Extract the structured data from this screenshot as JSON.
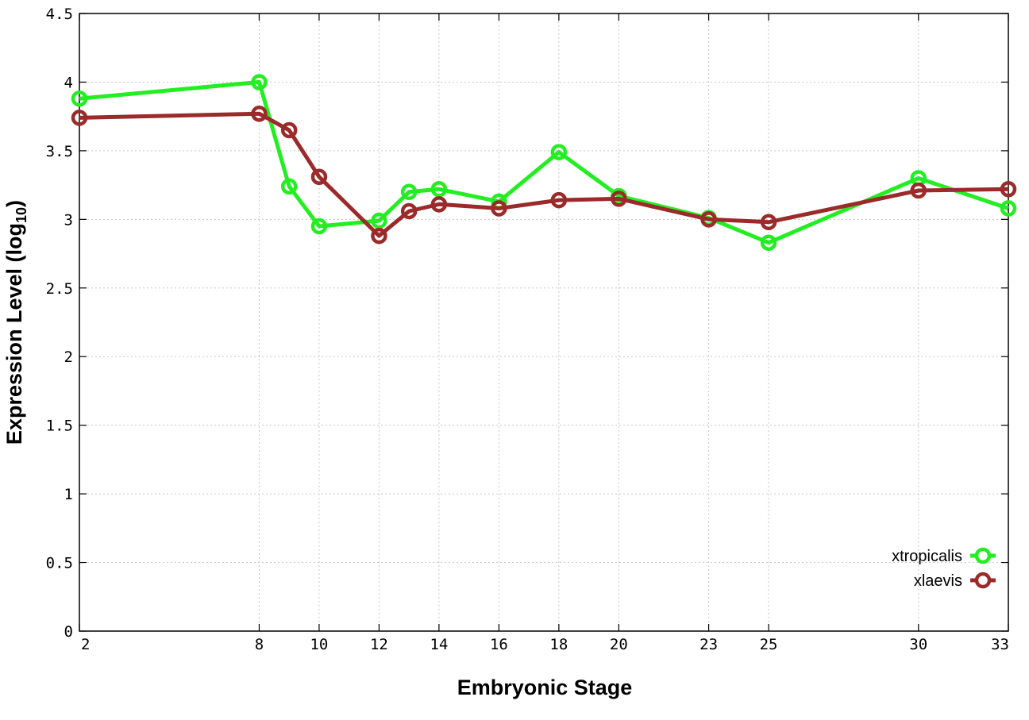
{
  "chart_data": {
    "type": "line",
    "title": "",
    "xlabel": "Embryonic Stage",
    "ylabel_main": "Expression Level (log",
    "ylabel_sub": "10",
    "ylabel_close": ")",
    "xlim": [
      2,
      33
    ],
    "ylim": [
      0,
      4.5
    ],
    "xticks": [
      2,
      8,
      10,
      12,
      14,
      16,
      18,
      20,
      23,
      25,
      30,
      33
    ],
    "xtick_labels": [
      "2",
      "8",
      "10",
      "12",
      "14",
      "16",
      "18",
      "20",
      "23",
      "25",
      "30",
      "33"
    ],
    "yticks": [
      0,
      0.5,
      1,
      1.5,
      2,
      2.5,
      3,
      3.5,
      4,
      4.5
    ],
    "ytick_labels": [
      "0",
      "0.5",
      "1",
      "1.5",
      "2",
      "2.5",
      "3",
      "3.5",
      "4",
      "4.5"
    ],
    "grid": true,
    "legend_position": "bottom-right",
    "series": [
      {
        "name": "xtropicalis",
        "color": "#22ee22",
        "marker": "circle-open",
        "x": [
          2,
          8,
          9,
          10,
          12,
          13,
          14,
          16,
          18,
          20,
          23,
          25,
          30,
          33
        ],
        "y": [
          3.88,
          4.0,
          3.24,
          2.95,
          2.99,
          3.2,
          3.22,
          3.13,
          3.49,
          3.17,
          3.01,
          2.83,
          3.3,
          3.08
        ]
      },
      {
        "name": "xlaevis",
        "color": "#9b2a2a",
        "marker": "circle-open",
        "x": [
          2,
          8,
          9,
          10,
          12,
          13,
          14,
          16,
          18,
          20,
          23,
          25,
          30,
          33
        ],
        "y": [
          3.74,
          3.77,
          3.65,
          3.31,
          2.88,
          3.06,
          3.11,
          3.08,
          3.14,
          3.15,
          3.0,
          2.98,
          3.21,
          3.22
        ]
      }
    ]
  }
}
